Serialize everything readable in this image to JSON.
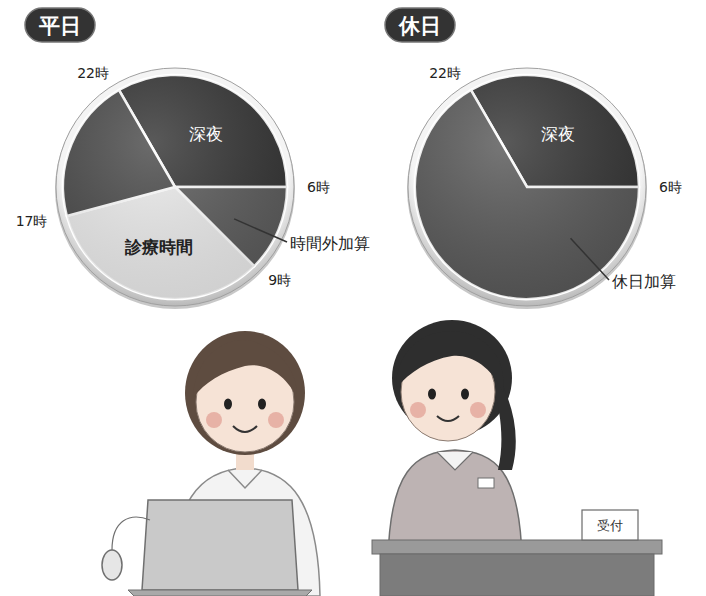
{
  "chart_data": [
    {
      "type": "pie",
      "title": "平日",
      "categories": [
        "深夜",
        "時間外加算",
        "診療時間",
        null
      ],
      "x": [
        22,
        6,
        9,
        17
      ],
      "values": [
        8,
        3,
        8,
        5
      ],
      "colors": [
        "#353535",
        "#5c5c5c",
        "#ececec",
        "#4b4b4b"
      ],
      "xlim": [
        0,
        24
      ],
      "xticks": [
        {
          "value": 22,
          "label": "22時"
        },
        {
          "value": 6,
          "label": "6時"
        },
        {
          "value": 9,
          "label": "9時"
        },
        {
          "value": 17,
          "label": "17時"
        }
      ]
    },
    {
      "type": "pie",
      "title": "休日",
      "categories": [
        "深夜",
        "休日加算"
      ],
      "x": [
        22,
        6
      ],
      "values": [
        8,
        16
      ],
      "colors": [
        "#353535",
        "#595959"
      ],
      "xlim": [
        0,
        24
      ],
      "xticks": [
        {
          "value": 22,
          "label": "22時"
        },
        {
          "value": 6,
          "label": "6時"
        }
      ]
    }
  ],
  "illustration": {
    "sign": "受付"
  }
}
